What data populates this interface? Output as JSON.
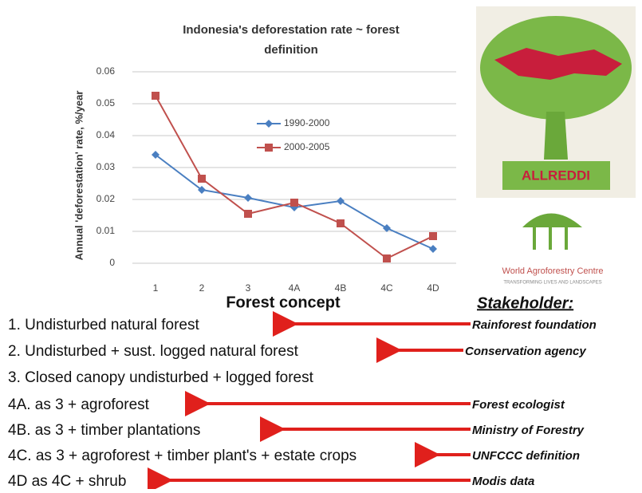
{
  "chart_data": {
    "type": "line",
    "title_lines": [
      "Indonesia's deforestation rate ~ forest",
      "definition"
    ],
    "y_label": "Annual 'deforestation' rate, %/year",
    "x_label": "Forest concept",
    "categories": [
      "1",
      "2",
      "3",
      "4A",
      "4B",
      "4C",
      "4D"
    ],
    "series": [
      {
        "name": "1990-2000",
        "color": "#4a7fc1",
        "marker": "diamond",
        "values": [
          0.034,
          0.023,
          0.0205,
          0.0175,
          0.0195,
          0.011,
          0.0045
        ]
      },
      {
        "name": "2000-2005",
        "color": "#c0504d",
        "marker": "square",
        "values": [
          0.0525,
          0.0265,
          0.0155,
          0.019,
          0.0125,
          0.0015,
          0.0085
        ]
      }
    ],
    "ylim": [
      0,
      0.06
    ],
    "yticks": [
      0,
      0.01,
      0.02,
      0.03,
      0.04,
      0.05,
      0.06
    ],
    "grid": true
  },
  "logos": {
    "allreddi": "ALLREDDI",
    "icraf": "World Agroforestry Centre",
    "icraf_tagline": "TRANSFORMING LIVES AND LANDSCAPES"
  },
  "stakeholder_heading": "Stakeholder:",
  "list": [
    {
      "text": "1. Undisturbed natural forest",
      "stakeholder": "Rainforest foundation"
    },
    {
      "text": "2. Undisturbed + sust. logged natural forest",
      "stakeholder": "Conservation agency"
    },
    {
      "text": "3. Closed canopy undisturbed + logged forest"
    },
    {
      "text": "4A. as 3 + agroforest",
      "stakeholder": "Forest ecologist"
    },
    {
      "text": "4B. as 3 + timber plantations",
      "stakeholder": "Ministry of Forestry"
    },
    {
      "text": "4C. as 3 + agroforest + timber plant's + estate crops",
      "stakeholder": "UNFCCC definition"
    },
    {
      "text": "4D as 4C + shrub",
      "stakeholder": "Modis data"
    }
  ]
}
